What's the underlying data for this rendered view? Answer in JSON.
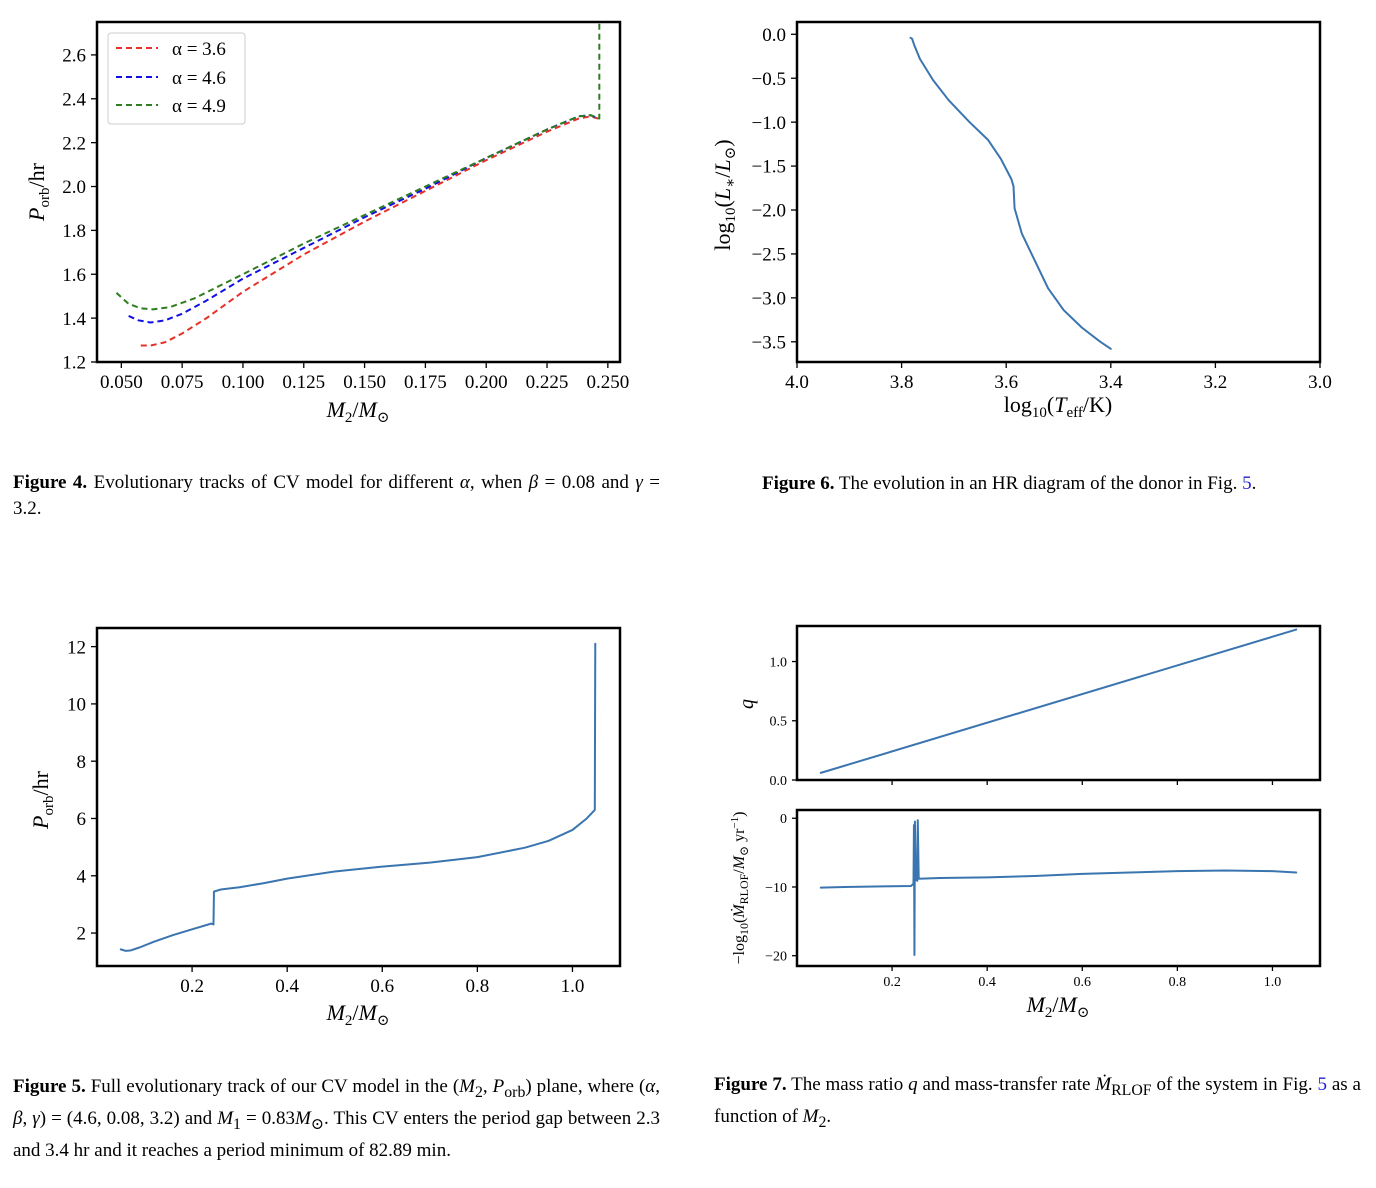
{
  "figures": {
    "fig4": {
      "label": "Figure 4.",
      "caption_html": "Evolutionary tracks of CV model for different <i>α</i>, when <i>β</i> = 0.08 and <i>γ</i> = 3.2."
    },
    "fig5": {
      "label": "Figure 5.",
      "caption_html": "Full evolutionary track of our CV model in the (<i>M</i><sub>2</sub>, <i>P</i><sub>orb</sub>) plane, where (<i>α</i>, <i>β</i>, <i>γ</i>) = (4.6, 0.08, 3.2) and <i>M</i><sub>1</sub> = 0.83<i>M</i><sub>⊙</sub>. This CV enters the period gap between 2.3 and 3.4 hr and it reaches a period minimum of 82.89 min."
    },
    "fig6": {
      "label": "Figure 6.",
      "caption_html": "The evolution in an HR diagram of the donor in Fig. <span class=\"ref\">5</span>."
    },
    "fig7": {
      "label": "Figure 7.",
      "caption_html": "The mass ratio <i>q</i> and mass-transfer rate <i>Ṁ</i><sub>RLOF</sub> of the system in Fig. <span class=\"ref\">5</span> as a function of <i>M</i><sub>2</sub>."
    }
  },
  "chart_data": [
    {
      "id": "fig4",
      "type": "line",
      "xlabel": "M₂/M⊙",
      "ylabel": "Porb/hr",
      "xlim": [
        0.04,
        0.255
      ],
      "ylim": [
        1.2,
        2.75
      ],
      "xticks": [
        0.05,
        0.075,
        0.1,
        0.125,
        0.15,
        0.175,
        0.2,
        0.225,
        0.25
      ],
      "xtick_labels": [
        "0.050",
        "0.075",
        "0.100",
        "0.125",
        "0.150",
        "0.175",
        "0.200",
        "0.225",
        "0.250"
      ],
      "yticks": [
        1.2,
        1.4,
        1.6,
        1.8,
        2.0,
        2.2,
        2.4,
        2.6
      ],
      "ytick_labels": [
        "1.2",
        "1.4",
        "1.6",
        "1.8",
        "2.0",
        "2.2",
        "2.4",
        "2.6"
      ],
      "legend": "top-left",
      "series": [
        {
          "name": "α = 3.6",
          "color": "#e8302a",
          "dash": "dashed",
          "points": [
            [
              0.058,
              1.275
            ],
            [
              0.062,
              1.275
            ],
            [
              0.068,
              1.29
            ],
            [
              0.075,
              1.33
            ],
            [
              0.085,
              1.4
            ],
            [
              0.1,
              1.52
            ],
            [
              0.125,
              1.69
            ],
            [
              0.15,
              1.84
            ],
            [
              0.175,
              1.98
            ],
            [
              0.2,
              2.12
            ],
            [
              0.225,
              2.25
            ],
            [
              0.238,
              2.31
            ],
            [
              0.243,
              2.32
            ],
            [
              0.246,
              2.31
            ]
          ]
        },
        {
          "name": "α = 4.6",
          "color": "#1010e6",
          "dash": "dashed",
          "points": [
            [
              0.053,
              1.41
            ],
            [
              0.057,
              1.39
            ],
            [
              0.062,
              1.38
            ],
            [
              0.068,
              1.39
            ],
            [
              0.075,
              1.42
            ],
            [
              0.085,
              1.48
            ],
            [
              0.1,
              1.58
            ],
            [
              0.125,
              1.72
            ],
            [
              0.15,
              1.86
            ],
            [
              0.175,
              1.99
            ],
            [
              0.2,
              2.13
            ],
            [
              0.225,
              2.26
            ],
            [
              0.238,
              2.32
            ],
            [
              0.243,
              2.325
            ],
            [
              0.246,
              2.31
            ]
          ]
        },
        {
          "name": "α = 4.9",
          "color": "#2e7d1e",
          "dash": "dashed",
          "points": [
            [
              0.048,
              1.515
            ],
            [
              0.053,
              1.465
            ],
            [
              0.058,
              1.445
            ],
            [
              0.063,
              1.44
            ],
            [
              0.07,
              1.45
            ],
            [
              0.08,
              1.49
            ],
            [
              0.1,
              1.6
            ],
            [
              0.125,
              1.74
            ],
            [
              0.15,
              1.87
            ],
            [
              0.175,
              2.0
            ],
            [
              0.2,
              2.13
            ],
            [
              0.225,
              2.26
            ],
            [
              0.238,
              2.32
            ],
            [
              0.243,
              2.325
            ],
            [
              0.2465,
              2.31
            ],
            [
              0.2465,
              2.75
            ]
          ]
        }
      ]
    },
    {
      "id": "fig6",
      "type": "line",
      "xlabel": "log10(Teff/K)",
      "ylabel": "log10(L*/L⊙)",
      "xlim": [
        4.0,
        3.0
      ],
      "ylim": [
        -3.73,
        0.14
      ],
      "xticks": [
        4.0,
        3.8,
        3.6,
        3.4,
        3.2,
        3.0
      ],
      "xtick_labels": [
        "4.0",
        "3.8",
        "3.6",
        "3.4",
        "3.2",
        "3.0"
      ],
      "yticks": [
        0.0,
        -0.5,
        -1.0,
        -1.5,
        -2.0,
        -2.5,
        -3.0,
        -3.5
      ],
      "ytick_labels": [
        "0.0",
        "−0.5",
        "−1.0",
        "−1.5",
        "−2.0",
        "−2.5",
        "−3.0",
        "−3.5"
      ],
      "series": [
        {
          "color": "#3a75b0",
          "points": [
            [
              3.783,
              -0.04
            ],
            [
              3.78,
              -0.05
            ],
            [
              3.776,
              -0.12
            ],
            [
              3.765,
              -0.28
            ],
            [
              3.74,
              -0.52
            ],
            [
              3.71,
              -0.75
            ],
            [
              3.67,
              -1.0
            ],
            [
              3.635,
              -1.2
            ],
            [
              3.61,
              -1.42
            ],
            [
              3.59,
              -1.65
            ],
            [
              3.586,
              -1.73
            ],
            [
              3.584,
              -1.98
            ],
            [
              3.57,
              -2.27
            ],
            [
              3.545,
              -2.58
            ],
            [
              3.52,
              -2.89
            ],
            [
              3.49,
              -3.14
            ],
            [
              3.455,
              -3.34
            ],
            [
              3.42,
              -3.5
            ],
            [
              3.4,
              -3.58
            ]
          ]
        }
      ]
    },
    {
      "id": "fig5",
      "type": "line",
      "xlabel": "M₂/M⊙",
      "ylabel": "Porb/hr",
      "xlim": [
        0.0,
        1.1
      ],
      "ylim": [
        0.85,
        12.65
      ],
      "xticks": [
        0.2,
        0.4,
        0.6,
        0.8,
        1.0
      ],
      "xtick_labels": [
        "0.2",
        "0.4",
        "0.6",
        "0.8",
        "1.0"
      ],
      "yticks": [
        2,
        4,
        6,
        8,
        10,
        12
      ],
      "ytick_labels": [
        "2",
        "4",
        "6",
        "8",
        "10",
        "12"
      ],
      "series": [
        {
          "color": "#3a75b0",
          "points": [
            [
              0.05,
              1.43
            ],
            [
              0.06,
              1.38
            ],
            [
              0.07,
              1.39
            ],
            [
              0.09,
              1.5
            ],
            [
              0.12,
              1.7
            ],
            [
              0.16,
              1.93
            ],
            [
              0.2,
              2.13
            ],
            [
              0.24,
              2.33
            ],
            [
              0.245,
              2.3
            ],
            [
              0.246,
              3.45
            ],
            [
              0.26,
              3.52
            ],
            [
              0.3,
              3.6
            ],
            [
              0.35,
              3.74
            ],
            [
              0.4,
              3.9
            ],
            [
              0.5,
              4.15
            ],
            [
              0.6,
              4.32
            ],
            [
              0.7,
              4.46
            ],
            [
              0.8,
              4.65
            ],
            [
              0.9,
              4.98
            ],
            [
              0.95,
              5.22
            ],
            [
              1.0,
              5.6
            ],
            [
              1.03,
              6.0
            ],
            [
              1.047,
              6.3
            ],
            [
              1.048,
              12.1
            ]
          ]
        }
      ]
    },
    {
      "id": "fig7_top",
      "type": "line",
      "ylabel": "q",
      "xlim": [
        0.0,
        1.1
      ],
      "ylim": [
        0.0,
        1.3
      ],
      "xticks": [
        0.2,
        0.4,
        0.6,
        0.8,
        1.0
      ],
      "yticks": [
        0.0,
        0.5,
        1.0
      ],
      "ytick_labels": [
        "0.0",
        "0.5",
        "1.0"
      ],
      "series": [
        {
          "color": "#3a75b0",
          "points": [
            [
              0.05,
              0.06
            ],
            [
              1.05,
              1.27
            ]
          ]
        }
      ]
    },
    {
      "id": "fig7_bottom",
      "type": "line",
      "xlabel": "M₂/M⊙",
      "ylabel": "−log10(ṀRLOF/M⊙ yr⁻¹)",
      "xlim": [
        0.0,
        1.1
      ],
      "ylim": [
        -21.5,
        1.2
      ],
      "xticks": [
        0.2,
        0.4,
        0.6,
        0.8,
        1.0
      ],
      "xtick_labels": [
        "0.2",
        "0.4",
        "0.6",
        "0.8",
        "1.0"
      ],
      "yticks": [
        0,
        -10,
        -20
      ],
      "ytick_labels": [
        "0",
        "−10",
        "−20"
      ],
      "series": [
        {
          "color": "#3a75b0",
          "points": [
            [
              0.05,
              -10.1
            ],
            [
              0.1,
              -10.0
            ],
            [
              0.2,
              -9.9
            ],
            [
              0.24,
              -9.85
            ],
            [
              0.245,
              -9.5
            ],
            [
              0.246,
              -1.0
            ],
            [
              0.247,
              -19.9
            ],
            [
              0.248,
              -0.5
            ],
            [
              0.25,
              -9.0
            ],
            [
              0.253,
              -9.1
            ],
            [
              0.254,
              -0.3
            ],
            [
              0.256,
              -8.8
            ],
            [
              0.3,
              -8.7
            ],
            [
              0.4,
              -8.6
            ],
            [
              0.5,
              -8.4
            ],
            [
              0.6,
              -8.1
            ],
            [
              0.7,
              -7.9
            ],
            [
              0.8,
              -7.7
            ],
            [
              0.9,
              -7.6
            ],
            [
              1.0,
              -7.7
            ],
            [
              1.05,
              -7.9
            ]
          ]
        }
      ]
    }
  ]
}
